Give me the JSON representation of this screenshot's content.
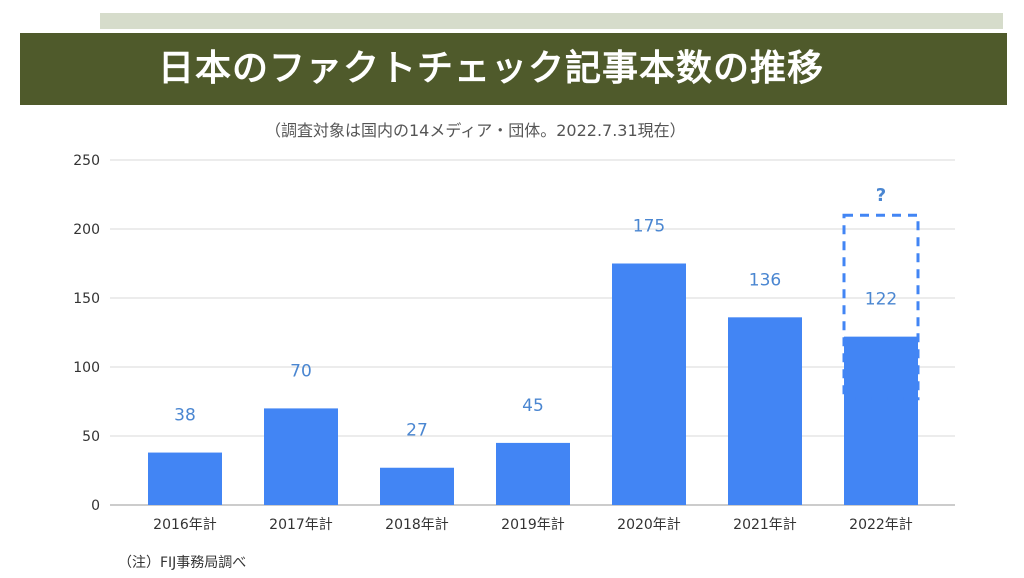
{
  "title": "日本のファクトチェック記事本数の推移",
  "subtitle": "（調査対象は国内の14メディア・団体。2022.7.31現在）",
  "footnote": "（注）FIJ事務局調べ",
  "colors": {
    "bar": "#4285f4",
    "label": "#4a86d1",
    "title_bg": "#4f5a2b",
    "strip": "#d6dccb",
    "grid": "#d9d9d9"
  },
  "chart_data": {
    "type": "bar",
    "categories": [
      "2016年計",
      "2017年計",
      "2018年計",
      "2019年計",
      "2020年計",
      "2021年計",
      "2022年計"
    ],
    "values": [
      38,
      70,
      27,
      45,
      175,
      136,
      122
    ],
    "data_labels": [
      "38",
      "70",
      "27",
      "45",
      "175",
      "136",
      "122"
    ],
    "ylim": [
      0,
      250
    ],
    "yticks": [
      0,
      50,
      100,
      150,
      200,
      250
    ],
    "grid": true,
    "annotation": {
      "category": "2022年計",
      "dashed_box_top": 210,
      "dashed_box_bottom": 77,
      "label": "?"
    }
  }
}
